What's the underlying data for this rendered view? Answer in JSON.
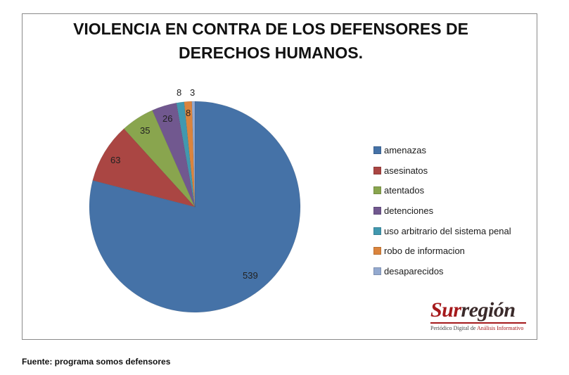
{
  "chart": {
    "title_line1": "VIOLENCIA EN CONTRA DE LOS DEFENSORES DE",
    "title_line2": "DERECHOS HUMANOS.",
    "source": "Fuente: programa somos defensores"
  },
  "logo": {
    "name_part1": "Sur",
    "name_part2": "región",
    "tagline_part1": "Periódico Digital de ",
    "tagline_part2": "Análisis Informativo"
  },
  "legend": [
    {
      "label": "amenazas",
      "color": "#4572a7"
    },
    {
      "label": "asesinatos",
      "color": "#aa4643"
    },
    {
      "label": "atentados",
      "color": "#89a54e"
    },
    {
      "label": "detenciones",
      "color": "#71588f"
    },
    {
      "label": "uso arbitrario del sistema penal",
      "color": "#4198af"
    },
    {
      "label": "robo de informacion",
      "color": "#db843d"
    },
    {
      "label": "desaparecidos",
      "color": "#93a9cf"
    }
  ],
  "labels": {
    "amenazas": "539",
    "asesinatos": "63",
    "atentados": "35",
    "detenciones": "26",
    "uso": "8",
    "robo": "8",
    "desaparecidos": "3"
  },
  "chart_data": {
    "type": "pie",
    "title": "VIOLENCIA EN CONTRA DE LOS DEFENSORES DE DERECHOS HUMANOS.",
    "categories": [
      "amenazas",
      "asesinatos",
      "atentados",
      "detenciones",
      "uso arbitrario del sistema penal",
      "robo de informacion",
      "desaparecidos"
    ],
    "values": [
      539,
      63,
      35,
      26,
      8,
      8,
      3
    ],
    "colors": [
      "#4572a7",
      "#aa4643",
      "#89a54e",
      "#71588f",
      "#4198af",
      "#db843d",
      "#93a9cf"
    ],
    "legend_position": "right",
    "start_angle": "12 o'clock, clockwise",
    "source": "Fuente: programa somos defensores"
  }
}
